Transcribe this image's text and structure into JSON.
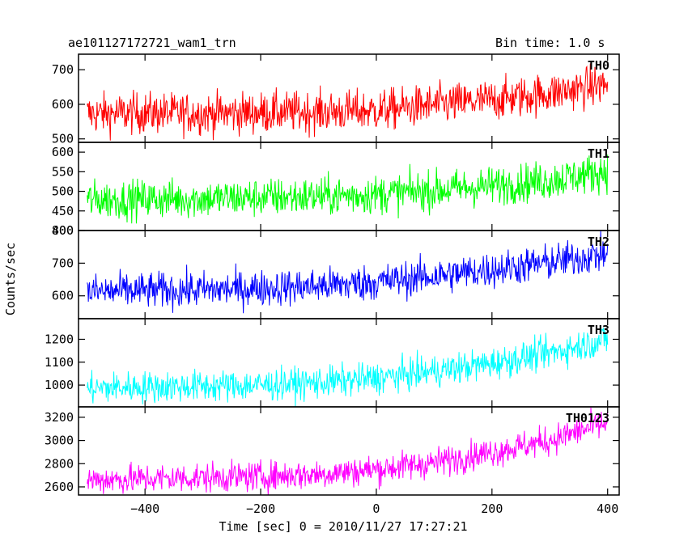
{
  "header": {
    "left_title": "ae101127172721_wam1_trn",
    "right_title": "Bin time: 1.0 s"
  },
  "chart_data": {
    "type": "line",
    "title": "ae101127172721_wam1_trn",
    "subtitle": "Bin time: 1.0 s",
    "xlabel": "Time [sec] 0 = 2010/11/27 17:27:21",
    "ylabel": "Counts/sec",
    "xlim": [
      -515,
      420
    ],
    "x_ticks": [
      -400,
      -200,
      0,
      200,
      400
    ],
    "x_tick_labels": [
      "−400",
      "−200",
      "0",
      "200",
      "400"
    ],
    "x_range_data": [
      -500,
      400
    ],
    "bin_time_sec": 1.0,
    "grid": false,
    "legend": "panel-label-top-right",
    "panels": [
      {
        "name": "TH0",
        "color": "#ff0000",
        "ylim": [
          490,
          745
        ],
        "y_ticks": [
          500,
          600,
          700
        ],
        "x": [
          -500,
          -400,
          -300,
          -200,
          -100,
          0,
          100,
          200,
          300,
          350,
          400
        ],
        "y": [
          572,
          575,
          573,
          576,
          578,
          582,
          598,
          612,
          632,
          645,
          658
        ],
        "noise_sd": 30
      },
      {
        "name": "TH1",
        "color": "#00ff00",
        "ylim": [
          400,
          625
        ],
        "y_ticks": [
          400,
          450,
          500,
          550,
          600
        ],
        "x": [
          -500,
          -400,
          -300,
          -200,
          -100,
          0,
          100,
          200,
          300,
          350,
          400
        ],
        "y": [
          478,
          480,
          481,
          484,
          487,
          492,
          502,
          514,
          528,
          540,
          552
        ],
        "noise_sd": 25
      },
      {
        "name": "TH2",
        "color": "#0000ff",
        "ylim": [
          530,
          800
        ],
        "y_ticks": [
          600,
          700,
          800
        ],
        "x": [
          -500,
          -400,
          -300,
          -200,
          -100,
          0,
          100,
          200,
          300,
          350,
          400
        ],
        "y": [
          612,
          616,
          618,
          623,
          630,
          642,
          660,
          680,
          702,
          716,
          730
        ],
        "noise_sd": 28
      },
      {
        "name": "TH3",
        "color": "#00ffff",
        "ylim": [
          905,
          1290
        ],
        "y_ticks": [
          1000,
          1100,
          1200
        ],
        "x": [
          -500,
          -400,
          -300,
          -200,
          -100,
          0,
          100,
          200,
          300,
          350,
          400
        ],
        "y": [
          985,
          992,
          995,
          1000,
          1010,
          1030,
          1060,
          1095,
          1140,
          1170,
          1200
        ],
        "noise_sd": 35
      },
      {
        "name": "TH0123",
        "color": "#ff00ff",
        "ylim": [
          2530,
          3290
        ],
        "y_ticks": [
          2600,
          2800,
          3000,
          3200
        ],
        "x": [
          -500,
          -400,
          -300,
          -200,
          -100,
          0,
          100,
          200,
          300,
          350,
          400
        ],
        "y": [
          2660,
          2670,
          2680,
          2690,
          2710,
          2750,
          2810,
          2900,
          3000,
          3080,
          3150
        ],
        "noise_sd": 65
      }
    ]
  }
}
